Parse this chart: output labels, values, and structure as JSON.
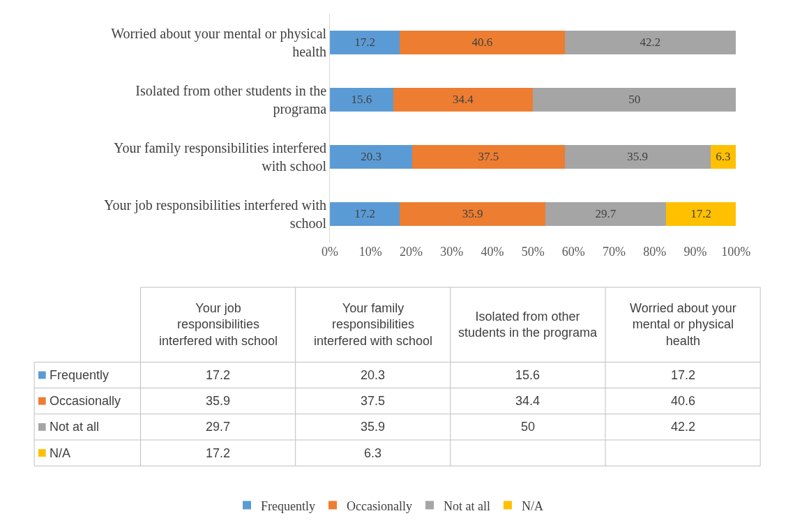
{
  "chart_data": [
    {
      "type": "bar",
      "orientation": "horizontal",
      "stacked": true,
      "data_labels": true,
      "legend": "bottom",
      "categories": [
        "Worried about your mental or physical health",
        "Isolated from other students in the programa",
        "Your family responsibilities interfered with school",
        "Your job responsibilities interfered with school"
      ],
      "series": [
        {
          "name": "Frequently",
          "color": "#5b9bd5",
          "values": [
            17.2,
            15.6,
            20.3,
            17.2
          ]
        },
        {
          "name": "Occasionally",
          "color": "#ed7d31",
          "values": [
            40.6,
            34.4,
            37.5,
            35.9
          ]
        },
        {
          "name": "Not at all",
          "color": "#a5a5a5",
          "values": [
            42.2,
            50,
            35.9,
            29.7
          ]
        },
        {
          "name": "N/A",
          "color": "#ffc000",
          "values": [
            null,
            null,
            6.3,
            17.2
          ]
        }
      ],
      "xlim": [
        0,
        100
      ],
      "xticks": [
        {
          "value": 0,
          "label": "0%"
        },
        {
          "value": 10,
          "label": "10%"
        },
        {
          "value": 20,
          "label": "20%"
        },
        {
          "value": 30,
          "label": "30%"
        },
        {
          "value": 40,
          "label": "40%"
        },
        {
          "value": 50,
          "label": "50%"
        },
        {
          "value": 60,
          "label": "60%"
        },
        {
          "value": 70,
          "label": "70%"
        },
        {
          "value": 80,
          "label": "80%"
        },
        {
          "value": 90,
          "label": "90%"
        },
        {
          "value": 100,
          "label": "100%"
        }
      ]
    },
    {
      "type": "other",
      "data_labels": true,
      "categories": [
        "Your job responsibilities interfered with school",
        "Your family responsibilities interfered with school",
        "Isolated from other students in the programa",
        "Worried about your mental or physical health"
      ],
      "series": [
        {
          "name": "Frequently",
          "color": "#5b9bd5",
          "values": [
            17.2,
            20.3,
            15.6,
            17.2
          ]
        },
        {
          "name": "Occasionally",
          "color": "#ed7d31",
          "values": [
            35.9,
            37.5,
            34.4,
            40.6
          ]
        },
        {
          "name": "Not at all",
          "color": "#a5a5a5",
          "values": [
            29.7,
            35.9,
            50,
            42.2
          ]
        },
        {
          "name": "N/A",
          "color": "#ffc000",
          "values": [
            17.2,
            6.3,
            null,
            null
          ]
        }
      ]
    }
  ]
}
